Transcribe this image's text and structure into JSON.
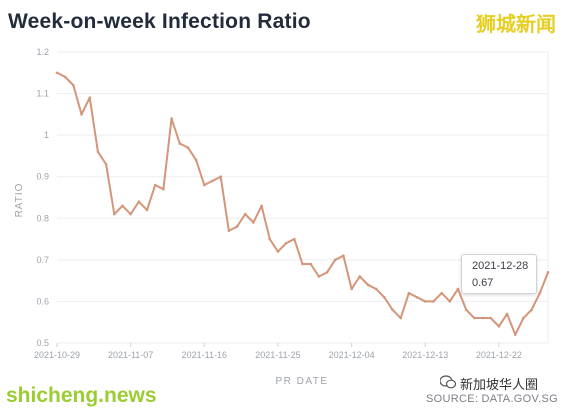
{
  "title": "Week-on-week Infection Ratio",
  "watermark_top": "狮城新闻",
  "watermark_bottom_left": "shicheng.news",
  "watermark_bottom_right": "新加坡华人圈",
  "source": "SOURCE: DATA.GOV.SG",
  "tooltip": {
    "date": "2021-12-28",
    "value": "0.67"
  },
  "colors": {
    "line": "#d4957a",
    "grid": "#eceef1",
    "axis_text": "#9ea3aa",
    "title": "#232c3b"
  },
  "chart_data": {
    "type": "line",
    "title": "Week-on-week Infection Ratio",
    "xlabel": "PR DATE",
    "ylabel": "RATIO",
    "ylim": [
      0.5,
      1.2
    ],
    "yticks": [
      0.5,
      0.6,
      0.7,
      0.8,
      0.9,
      1,
      1.1,
      1.2
    ],
    "ytick_labels": [
      "0.5",
      "0.6",
      "0.7",
      "0.8",
      "0.9",
      "1",
      "1.1",
      "1.2"
    ],
    "xticks": [
      "2021-10-29",
      "2021-11-07",
      "2021-11-16",
      "2021-11-25",
      "2021-12-04",
      "2021-12-13",
      "2021-12-22"
    ],
    "grid": true,
    "x": [
      "2021-10-29",
      "2021-10-30",
      "2021-10-31",
      "2021-11-01",
      "2021-11-02",
      "2021-11-03",
      "2021-11-04",
      "2021-11-05",
      "2021-11-06",
      "2021-11-07",
      "2021-11-08",
      "2021-11-09",
      "2021-11-10",
      "2021-11-11",
      "2021-11-12",
      "2021-11-13",
      "2021-11-14",
      "2021-11-15",
      "2021-11-16",
      "2021-11-17",
      "2021-11-18",
      "2021-11-19",
      "2021-11-20",
      "2021-11-21",
      "2021-11-22",
      "2021-11-23",
      "2021-11-24",
      "2021-11-25",
      "2021-11-26",
      "2021-11-27",
      "2021-11-28",
      "2021-11-29",
      "2021-11-30",
      "2021-12-01",
      "2021-12-02",
      "2021-12-03",
      "2021-12-04",
      "2021-12-05",
      "2021-12-06",
      "2021-12-07",
      "2021-12-08",
      "2021-12-09",
      "2021-12-10",
      "2021-12-11",
      "2021-12-12",
      "2021-12-13",
      "2021-12-14",
      "2021-12-15",
      "2021-12-16",
      "2021-12-17",
      "2021-12-18",
      "2021-12-19",
      "2021-12-20",
      "2021-12-21",
      "2021-12-22",
      "2021-12-23",
      "2021-12-24",
      "2021-12-25",
      "2021-12-26",
      "2021-12-27",
      "2021-12-28"
    ],
    "series": [
      {
        "values": [
          1.15,
          1.14,
          1.12,
          1.05,
          1.09,
          0.96,
          0.93,
          0.81,
          0.83,
          0.81,
          0.84,
          0.82,
          0.88,
          0.87,
          1.04,
          0.98,
          0.97,
          0.94,
          0.88,
          0.89,
          0.9,
          0.77,
          0.78,
          0.81,
          0.79,
          0.83,
          0.75,
          0.72,
          0.74,
          0.75,
          0.69,
          0.69,
          0.66,
          0.67,
          0.7,
          0.71,
          0.63,
          0.66,
          0.64,
          0.63,
          0.61,
          0.58,
          0.56,
          0.62,
          0.61,
          0.6,
          0.6,
          0.62,
          0.6,
          0.63,
          0.58,
          0.56,
          0.56,
          0.56,
          0.54,
          0.57,
          0.52,
          0.56,
          0.58,
          0.62,
          0.67
        ]
      }
    ]
  }
}
